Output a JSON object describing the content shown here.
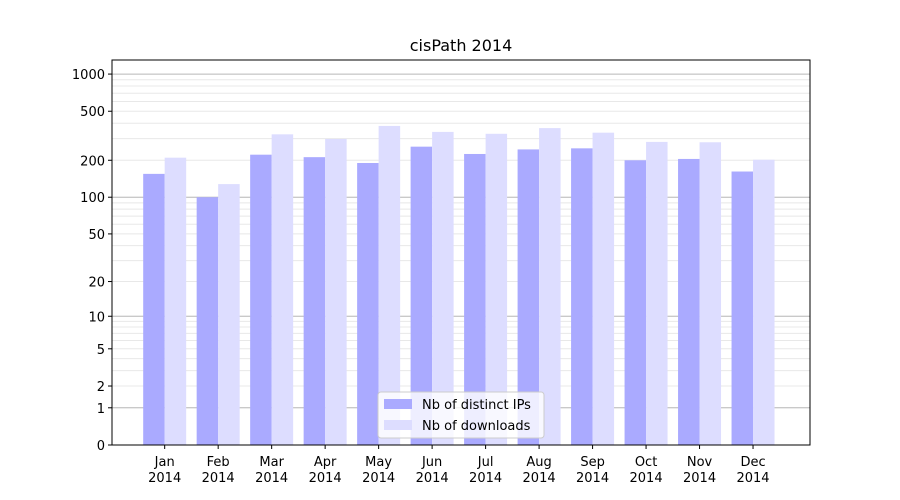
{
  "chart_data": {
    "type": "bar",
    "title": "cisPath 2014",
    "xlabel": "",
    "ylabel": "",
    "yscale": "log(1+y)",
    "ylim": [
      0,
      1300
    ],
    "yticks": [
      0,
      1,
      2,
      5,
      10,
      20,
      50,
      100,
      200,
      500,
      1000
    ],
    "categories": [
      [
        "Jan",
        "2014"
      ],
      [
        "Feb",
        "2014"
      ],
      [
        "Mar",
        "2014"
      ],
      [
        "Apr",
        "2014"
      ],
      [
        "May",
        "2014"
      ],
      [
        "Jun",
        "2014"
      ],
      [
        "Jul",
        "2014"
      ],
      [
        "Aug",
        "2014"
      ],
      [
        "Sep",
        "2014"
      ],
      [
        "Oct",
        "2014"
      ],
      [
        "Nov",
        "2014"
      ],
      [
        "Dec",
        "2014"
      ]
    ],
    "series": [
      {
        "name": "Nb of distinct IPs",
        "color": "#aaaaff",
        "values": [
          155,
          100,
          222,
          212,
          190,
          258,
          225,
          245,
          250,
          200,
          205,
          162
        ]
      },
      {
        "name": "Nb of downloads",
        "color": "#ddddff",
        "values": [
          210,
          128,
          325,
          298,
          380,
          340,
          328,
          365,
          335,
          282,
          280,
          202
        ]
      }
    ],
    "grid": true,
    "legend_position": "bottom-center"
  }
}
